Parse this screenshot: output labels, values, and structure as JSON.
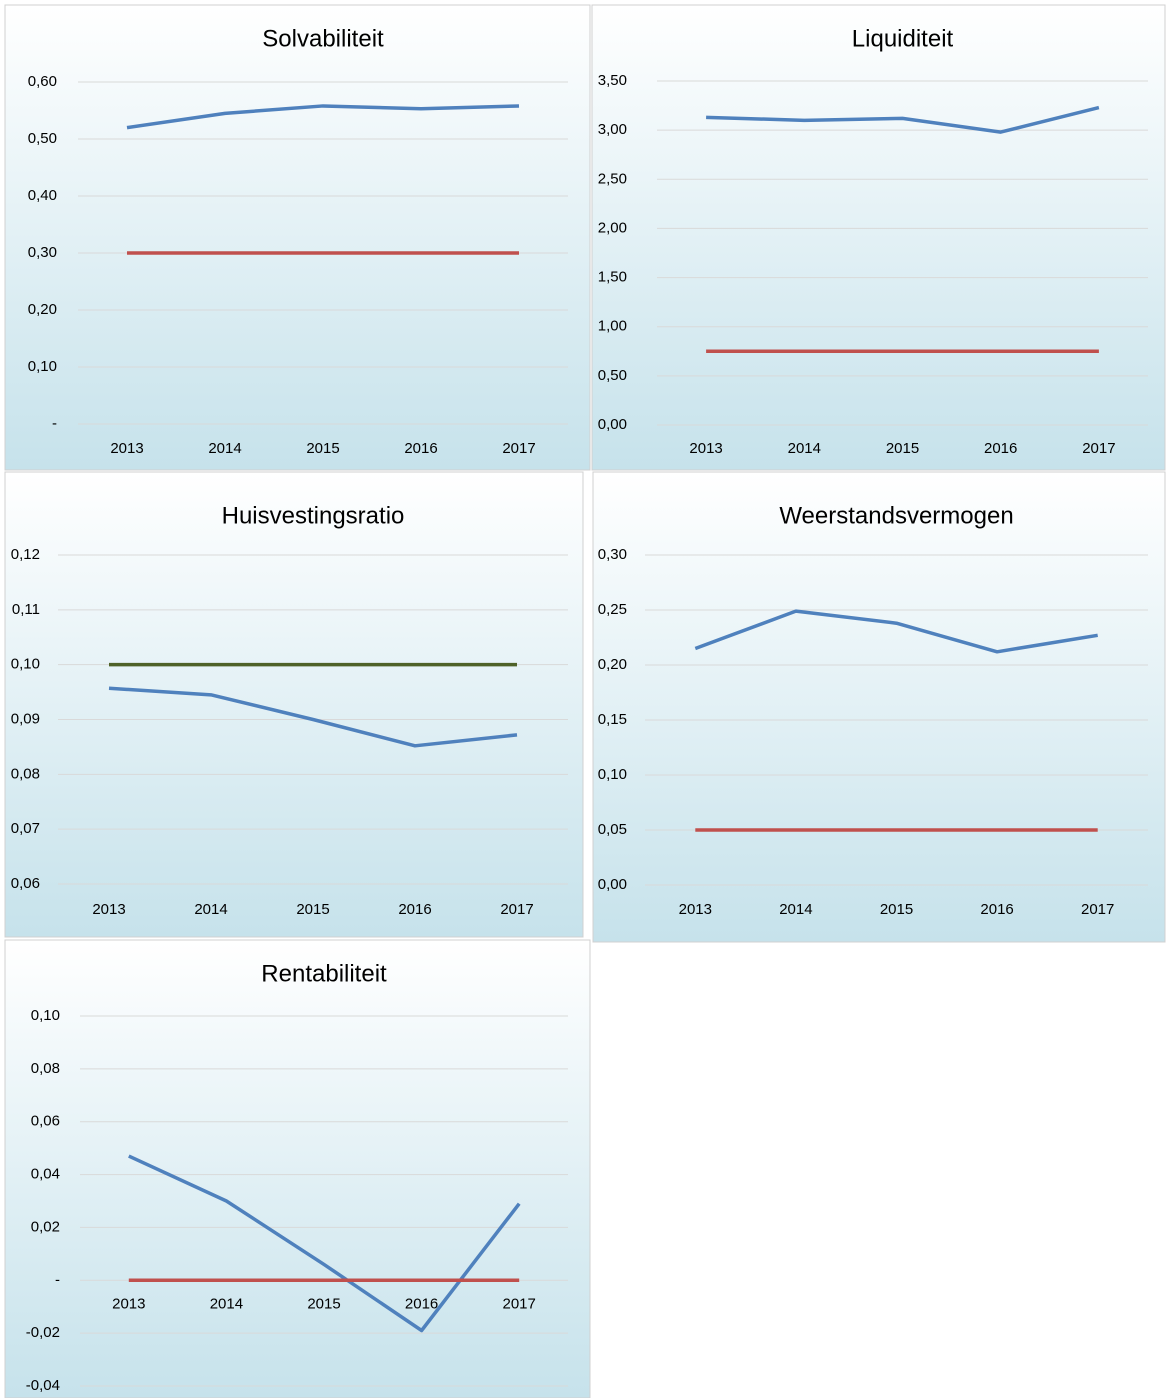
{
  "chart_data": [
    {
      "type": "line",
      "title": "Solvabiliteit",
      "categories": [
        "2013",
        "2014",
        "2015",
        "2016",
        "2017"
      ],
      "series": [
        {
          "color": "#4f81bd",
          "values": [
            0.52,
            0.545,
            0.558,
            0.553,
            0.558
          ]
        },
        {
          "color": "#c0504d",
          "values": [
            0.3,
            0.3,
            0.3,
            0.3,
            0.3
          ]
        }
      ],
      "ylim": [
        0,
        0.6
      ],
      "yticks": [
        {
          "value": 0,
          "label": "-"
        },
        {
          "value": 0.1,
          "label": "0,10"
        },
        {
          "value": 0.2,
          "label": "0,20"
        },
        {
          "value": 0.3,
          "label": "0,30"
        },
        {
          "value": 0.4,
          "label": "0,40"
        },
        {
          "value": 0.5,
          "label": "0,50"
        },
        {
          "value": 0.6,
          "label": "0,60"
        }
      ],
      "grid": true
    },
    {
      "type": "line",
      "title": "Liquiditeit",
      "categories": [
        "2013",
        "2014",
        "2015",
        "2016",
        "2017"
      ],
      "series": [
        {
          "color": "#4f81bd",
          "values": [
            3.13,
            3.1,
            3.12,
            2.98,
            3.23
          ]
        },
        {
          "color": "#c0504d",
          "values": [
            0.75,
            0.75,
            0.75,
            0.75,
            0.75
          ]
        }
      ],
      "ylim": [
        0,
        3.5
      ],
      "yticks": [
        {
          "value": 0,
          "label": "0,00"
        },
        {
          "value": 0.5,
          "label": "0,50"
        },
        {
          "value": 1,
          "label": "1,00"
        },
        {
          "value": 1.5,
          "label": "1,50"
        },
        {
          "value": 2,
          "label": "2,00"
        },
        {
          "value": 2.5,
          "label": "2,50"
        },
        {
          "value": 3,
          "label": "3,00"
        },
        {
          "value": 3.5,
          "label": "3,50"
        }
      ],
      "grid": true
    },
    {
      "type": "line",
      "title": "Huisvestingsratio",
      "categories": [
        "2013",
        "2014",
        "2015",
        "2016",
        "2017"
      ],
      "series": [
        {
          "color": "#4f6228",
          "values": [
            0.1,
            0.1,
            0.1,
            0.1,
            0.1
          ]
        },
        {
          "color": "#4f81bd",
          "values": [
            0.0957,
            0.0945,
            0.09,
            0.0852,
            0.0872
          ]
        }
      ],
      "ylim": [
        0.06,
        0.12
      ],
      "yticks": [
        {
          "value": 0.06,
          "label": "0,06"
        },
        {
          "value": 0.07,
          "label": "0,07"
        },
        {
          "value": 0.08,
          "label": "0,08"
        },
        {
          "value": 0.09,
          "label": "0,09"
        },
        {
          "value": 0.1,
          "label": "0,10"
        },
        {
          "value": 0.11,
          "label": "0,11"
        },
        {
          "value": 0.12,
          "label": "0,12"
        }
      ],
      "grid": true
    },
    {
      "type": "line",
      "title": "Weerstandsvermogen",
      "categories": [
        "2013",
        "2014",
        "2015",
        "2016",
        "2017"
      ],
      "series": [
        {
          "color": "#4f81bd",
          "values": [
            0.215,
            0.249,
            0.238,
            0.212,
            0.227
          ]
        },
        {
          "color": "#c0504d",
          "values": [
            0.05,
            0.05,
            0.05,
            0.05,
            0.05
          ]
        }
      ],
      "ylim": [
        0,
        0.3
      ],
      "yticks": [
        {
          "value": 0,
          "label": "0,00"
        },
        {
          "value": 0.05,
          "label": "0,05"
        },
        {
          "value": 0.1,
          "label": "0,10"
        },
        {
          "value": 0.15,
          "label": "0,15"
        },
        {
          "value": 0.2,
          "label": "0,20"
        },
        {
          "value": 0.25,
          "label": "0,25"
        },
        {
          "value": 0.3,
          "label": "0,30"
        }
      ],
      "grid": true
    },
    {
      "type": "line",
      "title": "Rentabiliteit",
      "categories": [
        "2013",
        "2014",
        "2015",
        "2016",
        "2017"
      ],
      "series": [
        {
          "color": "#4f81bd",
          "values": [
            0.047,
            0.03,
            0.006,
            -0.019,
            0.029
          ]
        },
        {
          "color": "#c0504d",
          "values": [
            0,
            0,
            0,
            0,
            0
          ]
        }
      ],
      "ylim": [
        -0.04,
        0.1
      ],
      "yticks": [
        {
          "value": -0.04,
          "label": "-0,04"
        },
        {
          "value": -0.02,
          "label": "-0,02"
        },
        {
          "value": 0,
          "label": "-"
        },
        {
          "value": 0.02,
          "label": "0,02"
        },
        {
          "value": 0.04,
          "label": "0,04"
        },
        {
          "value": 0.06,
          "label": "0,06"
        },
        {
          "value": 0.08,
          "label": "0,08"
        },
        {
          "value": 0.1,
          "label": "0,10"
        }
      ],
      "grid": true
    }
  ]
}
